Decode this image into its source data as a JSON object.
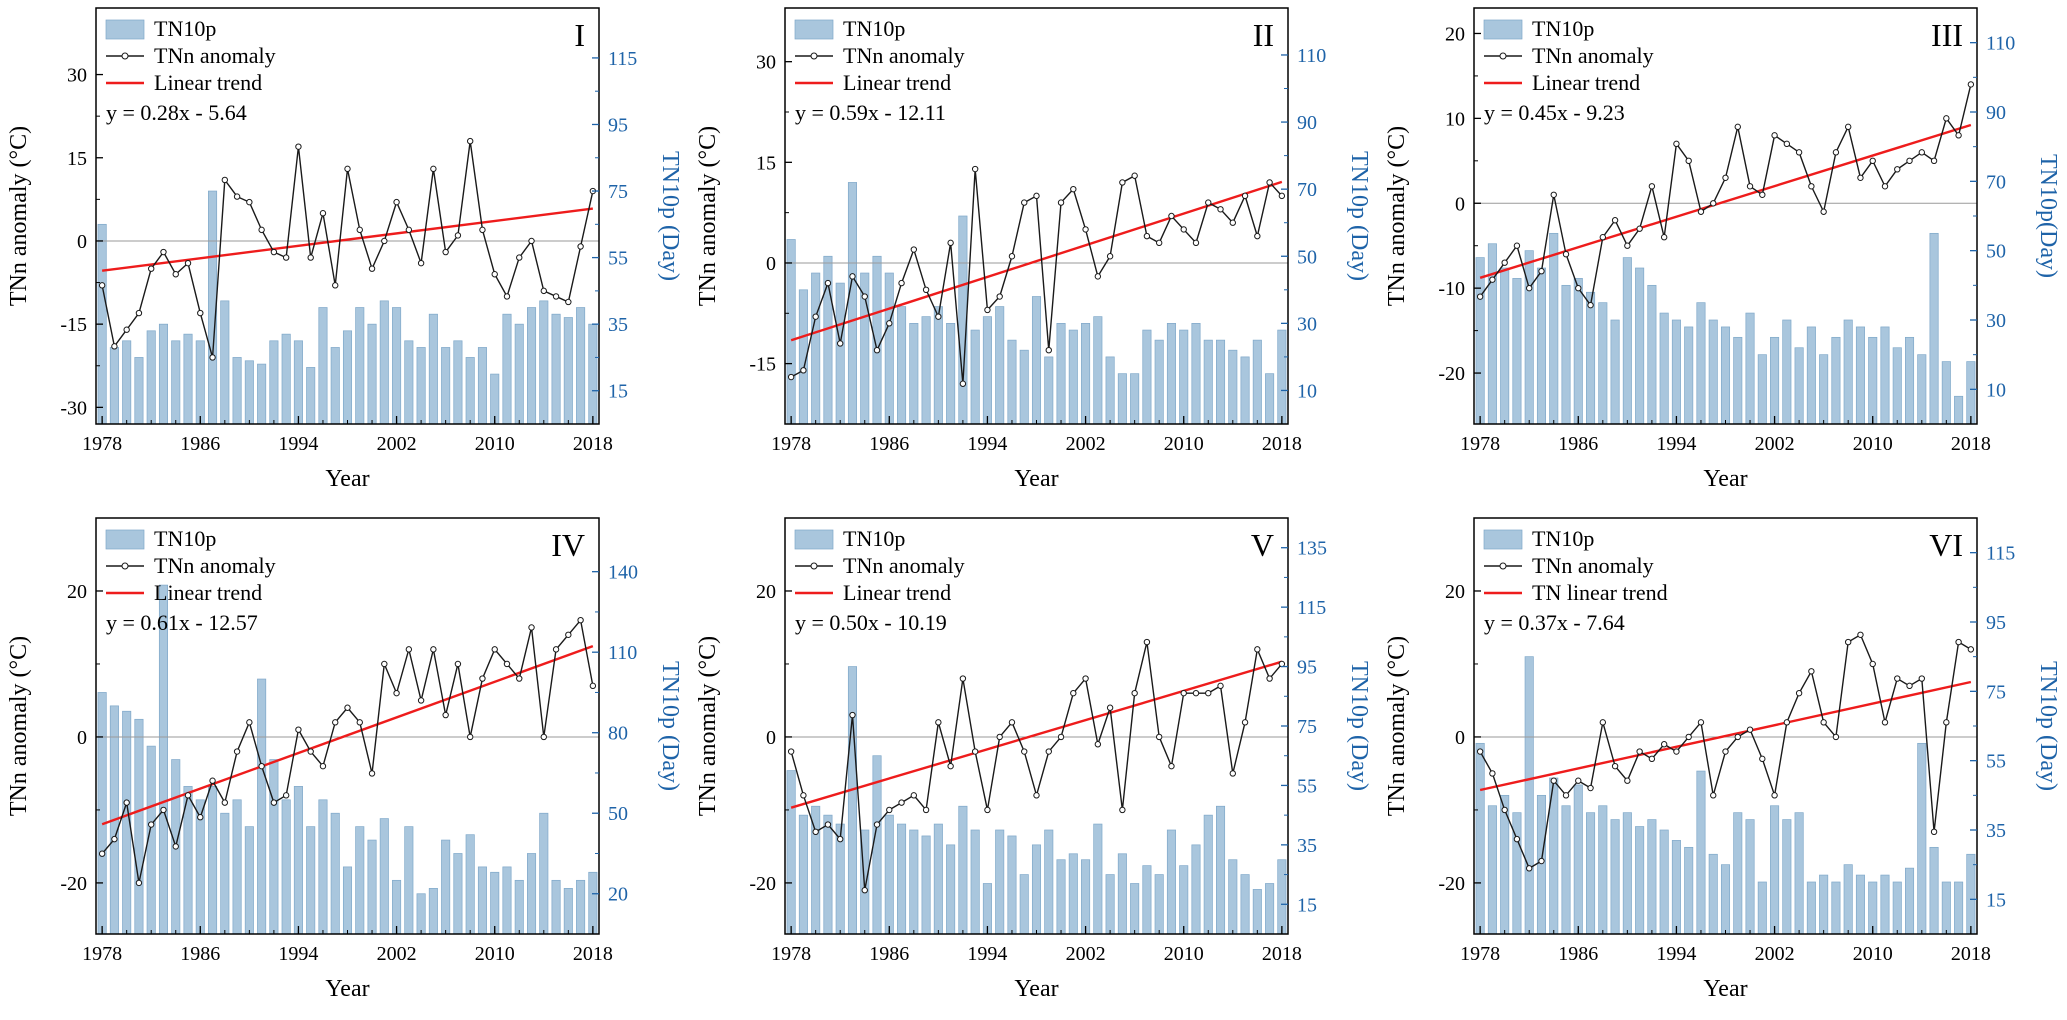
{
  "figure": {
    "xlabel": "Year",
    "x_ticks": [
      1978,
      1986,
      1994,
      2002,
      2010,
      2018
    ],
    "x_minor_step": 2
  },
  "colors": {
    "bar_fill": "#A9C6DD",
    "bar_stroke": "#7FA8C9",
    "line": "#1a1a1a",
    "marker_fill": "#ffffff",
    "trend": "#EE1C1C",
    "right_axis": "#1E63A8",
    "zero_line": "#9a9a9a",
    "frame": "#000000"
  },
  "chart_data": [
    {
      "type": "bar+line",
      "panel_label": "I",
      "legend": [
        "TN10p",
        "TNn anomaly",
        "Linear trend"
      ],
      "equation": "y = 0.28x - 5.64",
      "trend": {
        "slope": 0.28,
        "intercept": -5.64
      },
      "left_axis": {
        "label": "TNn anomaly (°C)",
        "ticks": [
          -30,
          -15,
          0,
          15,
          30
        ],
        "range": [
          -33,
          42
        ]
      },
      "right_axis": {
        "label": "TN10p (Day)",
        "ticks": [
          15,
          35,
          55,
          75,
          95,
          115
        ],
        "range": [
          5,
          130
        ]
      },
      "x": {
        "start": 1978,
        "end": 2018,
        "step": 1
      },
      "tnn_anomaly": [
        -8,
        -19,
        -16,
        -13,
        -5,
        -2,
        -6,
        -4,
        -13,
        -21,
        11,
        8,
        7,
        2,
        -2,
        -3,
        17,
        -3,
        5,
        -8,
        13,
        2,
        -5,
        0,
        7,
        2,
        -4,
        13,
        -2,
        1,
        18,
        2,
        -6,
        -10,
        -3,
        0,
        -9,
        -10,
        -11,
        -1,
        9
      ],
      "tn10p_days": [
        65,
        28,
        30,
        25,
        33,
        35,
        30,
        32,
        30,
        75,
        42,
        25,
        24,
        23,
        30,
        32,
        30,
        22,
        40,
        28,
        33,
        40,
        35,
        42,
        40,
        30,
        28,
        38,
        28,
        30,
        25,
        28,
        20,
        38,
        35,
        40,
        42,
        38,
        37,
        40,
        35
      ]
    },
    {
      "type": "bar+line",
      "panel_label": "II",
      "legend": [
        "TN10p",
        "TNn anomaly",
        "Linear trend"
      ],
      "equation": "y = 0.59x - 12.11",
      "trend": {
        "slope": 0.59,
        "intercept": -12.11
      },
      "left_axis": {
        "label": "TNn anomaly (°C)",
        "ticks": [
          -15,
          0,
          15,
          30
        ],
        "range": [
          -24,
          38
        ]
      },
      "right_axis": {
        "label": "TN10p (Day)",
        "ticks": [
          10,
          30,
          50,
          70,
          90,
          110
        ],
        "range": [
          0,
          124
        ]
      },
      "x": {
        "start": 1978,
        "end": 2018,
        "step": 1
      },
      "tnn_anomaly": [
        -17,
        -16,
        -8,
        -3,
        -12,
        -2,
        -5,
        -13,
        -9,
        -3,
        2,
        -4,
        -8,
        3,
        -18,
        14,
        -7,
        -5,
        1,
        9,
        10,
        -13,
        9,
        11,
        5,
        -2,
        1,
        12,
        13,
        4,
        3,
        7,
        5,
        3,
        9,
        8,
        6,
        10,
        4,
        12,
        10
      ],
      "tn10p_days": [
        55,
        40,
        45,
        50,
        42,
        72,
        45,
        50,
        45,
        35,
        30,
        32,
        35,
        30,
        62,
        28,
        32,
        35,
        25,
        22,
        38,
        20,
        30,
        28,
        30,
        32,
        20,
        15,
        15,
        28,
        25,
        30,
        28,
        30,
        25,
        25,
        22,
        20,
        25,
        15,
        28
      ]
    },
    {
      "type": "bar+line",
      "panel_label": "III",
      "legend": [
        "TN10p",
        "TNn anomaly",
        "Linear trend"
      ],
      "equation": "y = 0.45x - 9.23",
      "trend": {
        "slope": 0.45,
        "intercept": -9.23
      },
      "left_axis": {
        "label": "TNn anomaly (°C)",
        "ticks": [
          -20,
          -10,
          0,
          10,
          20
        ],
        "range": [
          -26,
          23
        ]
      },
      "right_axis": {
        "label": "TN10p(Day)",
        "ticks": [
          10,
          30,
          50,
          70,
          90,
          110
        ],
        "range": [
          0,
          120
        ]
      },
      "x": {
        "start": 1978,
        "end": 2018,
        "step": 1
      },
      "tnn_anomaly": [
        -11,
        -9,
        -7,
        -5,
        -10,
        -8,
        1,
        -6,
        -10,
        -12,
        -4,
        -2,
        -5,
        -3,
        2,
        -4,
        7,
        5,
        -1,
        0,
        3,
        9,
        2,
        1,
        8,
        7,
        6,
        2,
        -1,
        6,
        9,
        3,
        5,
        2,
        4,
        5,
        6,
        5,
        10,
        8,
        14
      ],
      "tn10p_days": [
        48,
        52,
        45,
        42,
        50,
        45,
        55,
        40,
        42,
        38,
        35,
        30,
        48,
        45,
        40,
        32,
        30,
        28,
        35,
        30,
        28,
        25,
        32,
        20,
        25,
        30,
        22,
        28,
        20,
        25,
        30,
        28,
        25,
        28,
        22,
        25,
        20,
        55,
        18,
        8,
        18
      ]
    },
    {
      "type": "bar+line",
      "panel_label": "IV",
      "legend": [
        "TN10p",
        "TNn anomaly",
        "Linear trend"
      ],
      "equation": "y = 0.61x - 12.57",
      "trend": {
        "slope": 0.61,
        "intercept": -12.57
      },
      "left_axis": {
        "label": "TNn anomaly (°C)",
        "ticks": [
          -20,
          0,
          20
        ],
        "range": [
          -27,
          30
        ]
      },
      "right_axis": {
        "label": "TN10p (Day)",
        "ticks": [
          20,
          50,
          80,
          110,
          140
        ],
        "range": [
          5,
          160
        ]
      },
      "x": {
        "start": 1978,
        "end": 2018,
        "step": 1
      },
      "tnn_anomaly": [
        -16,
        -14,
        -9,
        -20,
        -12,
        -10,
        -15,
        -8,
        -11,
        -6,
        -9,
        -2,
        2,
        -4,
        -9,
        -8,
        1,
        -2,
        -4,
        2,
        4,
        2,
        -5,
        10,
        6,
        12,
        5,
        12,
        3,
        10,
        0,
        8,
        12,
        10,
        8,
        15,
        0,
        12,
        14,
        16,
        7
      ],
      "tn10p_days": [
        95,
        90,
        88,
        85,
        75,
        135,
        70,
        60,
        55,
        60,
        50,
        55,
        45,
        100,
        70,
        55,
        60,
        45,
        55,
        50,
        30,
        45,
        40,
        48,
        25,
        45,
        20,
        22,
        40,
        35,
        42,
        30,
        28,
        30,
        25,
        35,
        50,
        25,
        22,
        25,
        28
      ]
    },
    {
      "type": "bar+line",
      "panel_label": "V",
      "legend": [
        "TN10p",
        "TNn anomaly",
        "Linear trend"
      ],
      "equation": "y = 0.50x - 10.19",
      "trend": {
        "slope": 0.5,
        "intercept": -10.19
      },
      "left_axis": {
        "label": "TNn anomaly (°C)",
        "ticks": [
          -20,
          0,
          20
        ],
        "range": [
          -27,
          30
        ]
      },
      "right_axis": {
        "label": "TN10p (Day)",
        "ticks": [
          15,
          35,
          55,
          75,
          95,
          115,
          135
        ],
        "range": [
          5,
          145
        ]
      },
      "x": {
        "start": 1978,
        "end": 2018,
        "step": 1
      },
      "tnn_anomaly": [
        -2,
        -8,
        -13,
        -12,
        -14,
        3,
        -21,
        -12,
        -10,
        -9,
        -8,
        -10,
        2,
        -4,
        8,
        -2,
        -10,
        0,
        2,
        -2,
        -8,
        -2,
        0,
        6,
        8,
        -1,
        4,
        -10,
        6,
        13,
        0,
        -4,
        6,
        6,
        6,
        7,
        -5,
        2,
        12,
        8,
        10
      ],
      "tn10p_days": [
        60,
        45,
        48,
        45,
        42,
        95,
        40,
        65,
        45,
        42,
        40,
        38,
        42,
        35,
        48,
        40,
        22,
        40,
        38,
        25,
        35,
        40,
        30,
        32,
        30,
        42,
        25,
        32,
        22,
        28,
        25,
        40,
        28,
        35,
        45,
        48,
        30,
        25,
        20,
        22,
        30
      ]
    },
    {
      "type": "bar+line",
      "panel_label": "VI",
      "legend": [
        "TN10p",
        "TNn anomaly",
        "TN linear trend"
      ],
      "equation": "y = 0.37x - 7.64",
      "trend": {
        "slope": 0.37,
        "intercept": -7.64
      },
      "left_axis": {
        "label": "TNn anomaly (°C)",
        "ticks": [
          -20,
          0,
          20
        ],
        "range": [
          -27,
          30
        ]
      },
      "right_axis": {
        "label": "TN10p (Day)",
        "ticks": [
          15,
          35,
          55,
          75,
          95,
          115
        ],
        "range": [
          5,
          125
        ]
      },
      "x": {
        "start": 1978,
        "end": 2018,
        "step": 1
      },
      "tnn_anomaly": [
        -2,
        -5,
        -10,
        -14,
        -18,
        -17,
        -6,
        -8,
        -6,
        -7,
        2,
        -4,
        -6,
        -2,
        -3,
        -1,
        -2,
        0,
        2,
        -8,
        -2,
        0,
        1,
        -3,
        -8,
        2,
        6,
        9,
        2,
        0,
        13,
        14,
        10,
        2,
        8,
        7,
        8,
        -13,
        2,
        13,
        12
      ],
      "tn10p_days": [
        60,
        42,
        45,
        40,
        85,
        45,
        50,
        42,
        48,
        40,
        42,
        38,
        40,
        36,
        38,
        35,
        32,
        30,
        52,
        28,
        25,
        40,
        38,
        20,
        42,
        38,
        40,
        20,
        22,
        20,
        25,
        22,
        20,
        22,
        20,
        24,
        60,
        30,
        20,
        20,
        28
      ]
    }
  ]
}
